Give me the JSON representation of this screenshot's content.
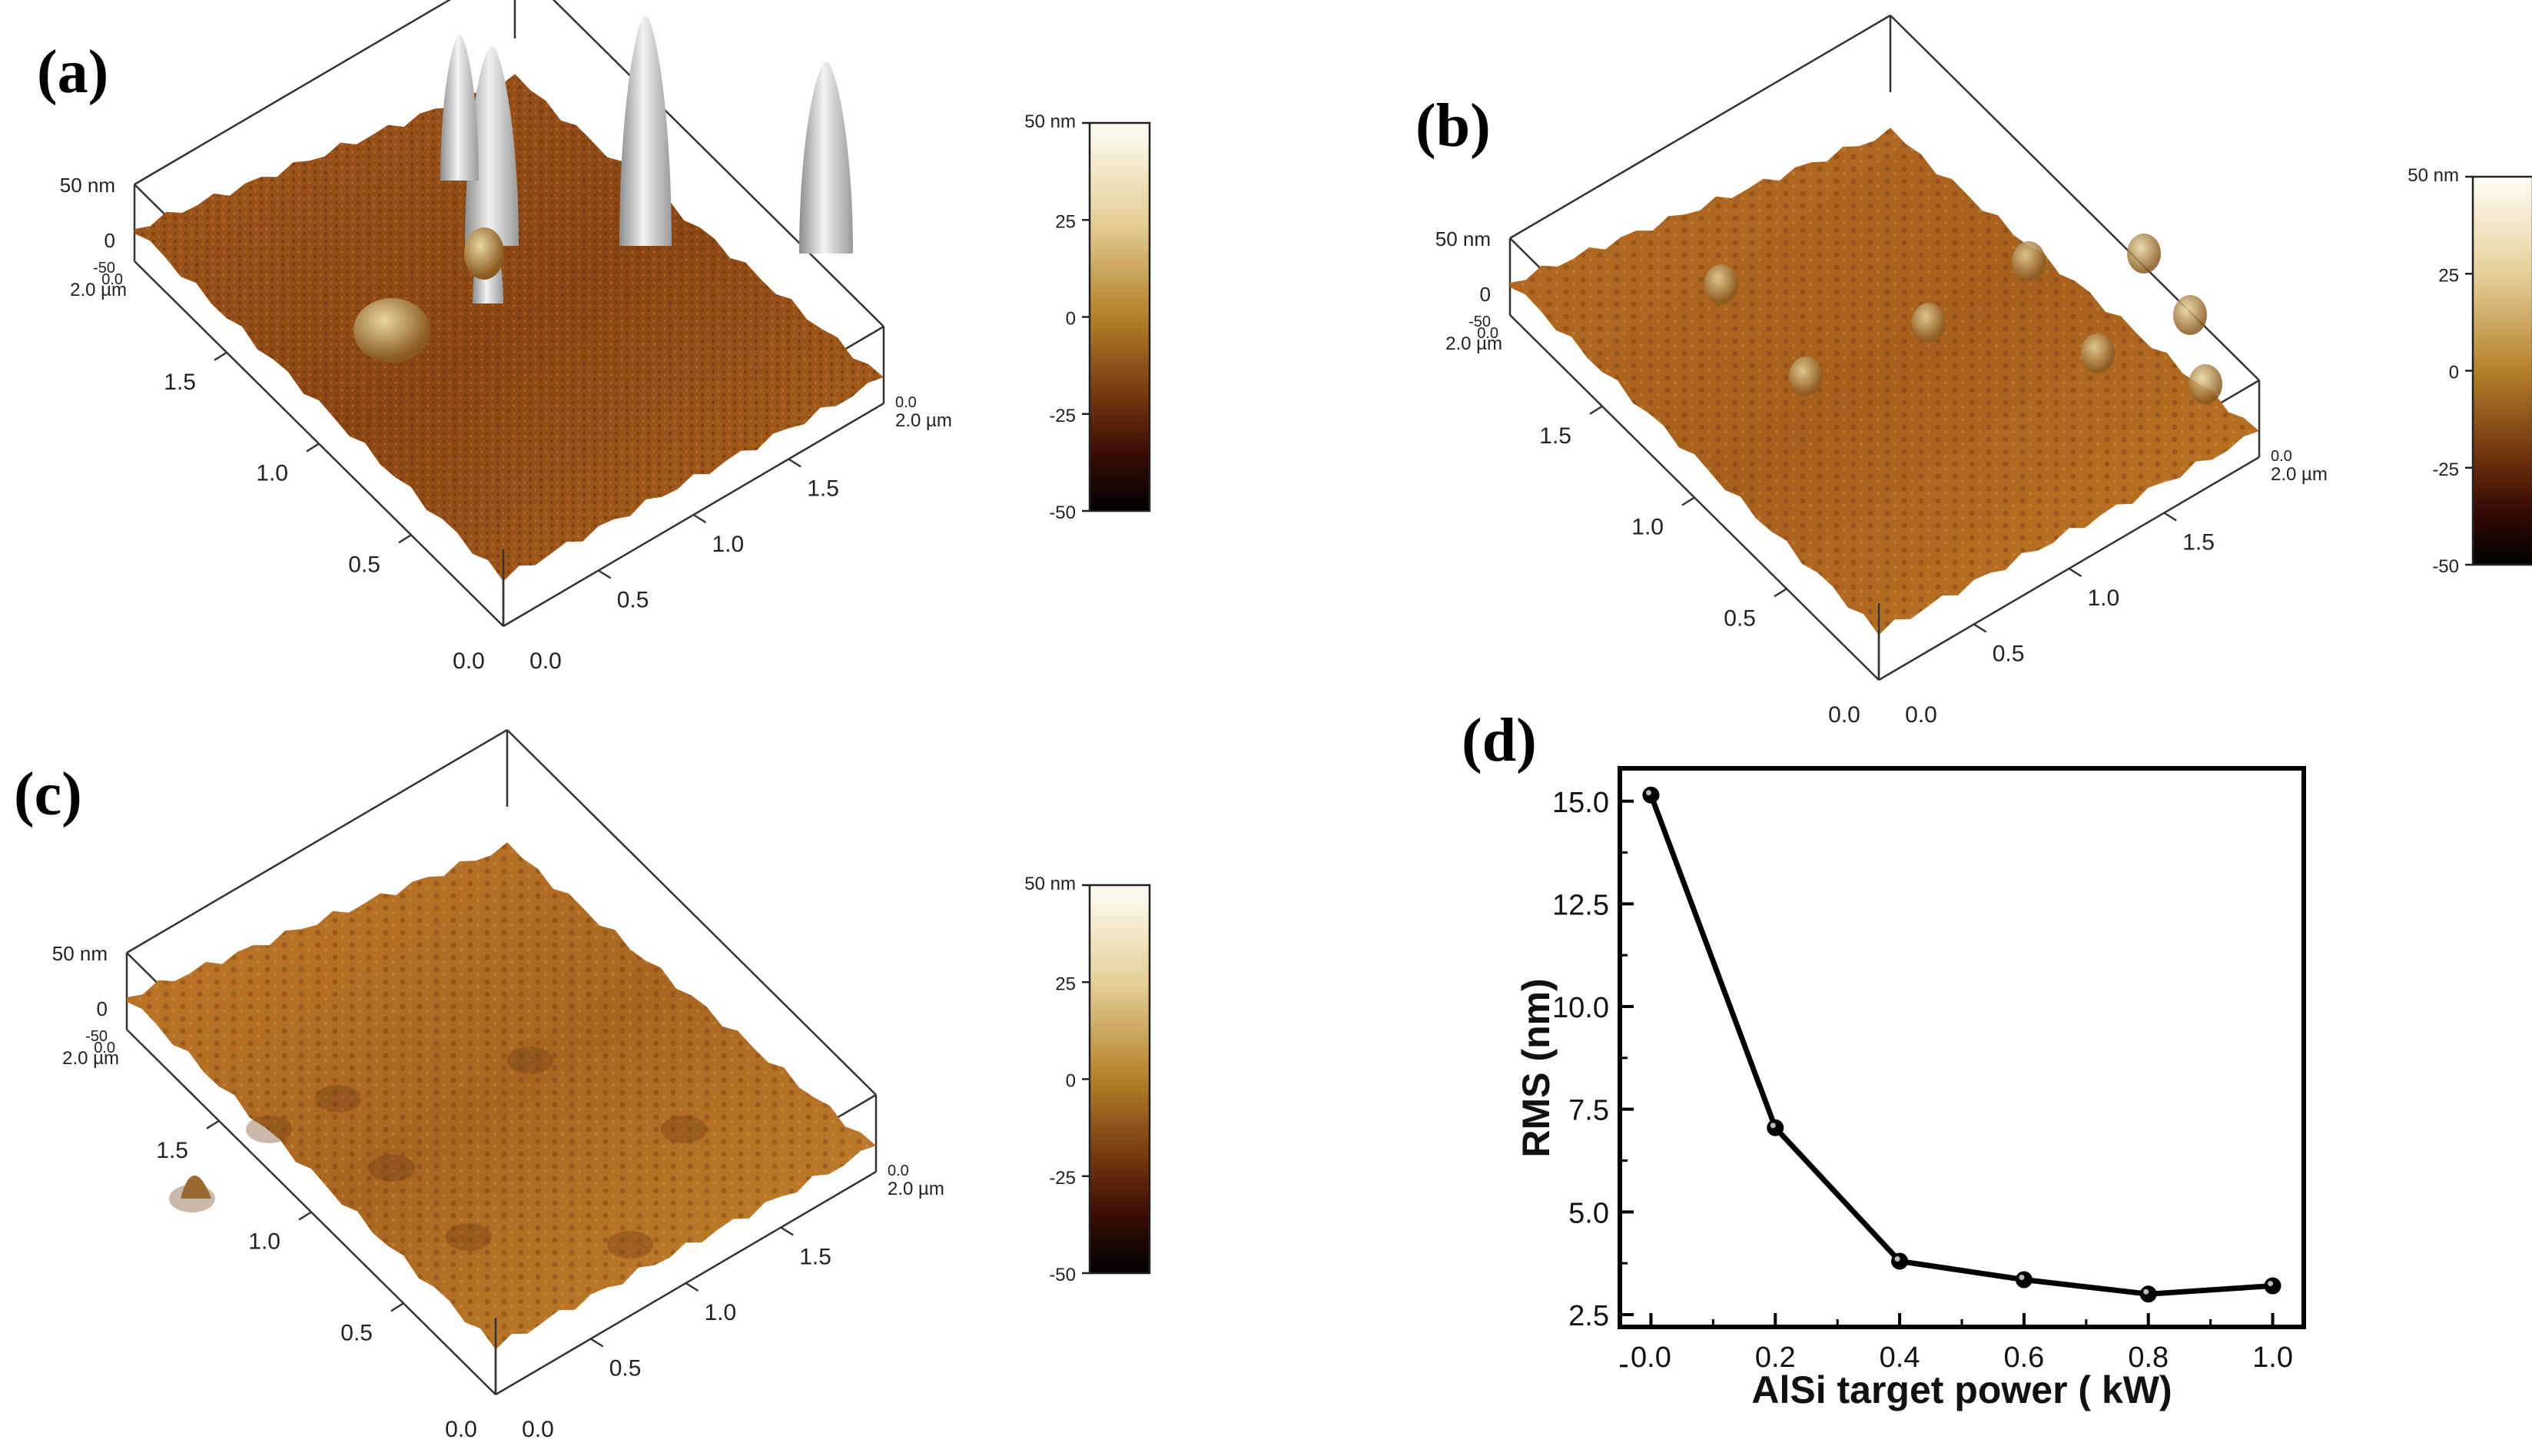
{
  "labels": {
    "a": "(a)",
    "b": "(b)",
    "c": "(c)",
    "d": "(d)"
  },
  "afm_panels": [
    {
      "id": "a",
      "z_label": "50 nm",
      "z_zero": "0",
      "z_neg": "-50",
      "corner_y": "0.0",
      "corner_x": "0.0",
      "y_end": "2.0 µm",
      "x_end": "2.0 µm",
      "axis_ticks": [
        "0.0",
        "0.5",
        "1.0",
        "1.5"
      ],
      "back_zero_left": "0.0",
      "back_zero_right": "0.0",
      "peaks": "tall"
    },
    {
      "id": "b",
      "z_label": "50 nm",
      "z_zero": "0",
      "z_neg": "-50",
      "corner_y": "0.0",
      "corner_x": "0.0",
      "y_end": "2.0 µm",
      "x_end": "2.0 µm",
      "axis_ticks": [
        "0.0",
        "0.5",
        "1.0",
        "1.5"
      ],
      "back_zero_left": "0.0",
      "back_zero_right": "0.0",
      "peaks": "small"
    },
    {
      "id": "c",
      "z_label": "50 nm",
      "z_zero": "0",
      "z_neg": "-50",
      "corner_y": "0.0",
      "corner_x": "0.0",
      "y_end": "2.0 µm",
      "x_end": "2.0 µm",
      "axis_ticks": [
        "0.0",
        "0.5",
        "1.0",
        "1.5"
      ],
      "back_zero_left": "0.0",
      "back_zero_right": "0.0",
      "peaks": "smooth"
    }
  ],
  "colorbar": {
    "ticks": [
      "50 nm",
      "25",
      "0",
      "-25",
      "-50"
    ],
    "gradient": [
      "#fefcf4",
      "#e9d6a0",
      "#b98a2c",
      "#7a3c10",
      "#3a0c04",
      "#000000"
    ]
  },
  "chart_data": {
    "type": "line",
    "x": [
      0.0,
      0.2,
      0.4,
      0.6,
      0.8,
      1.0
    ],
    "y": [
      15.15,
      7.05,
      3.8,
      3.35,
      3.0,
      3.2
    ],
    "xlabel": "AlSi target power ( kW)",
    "ylabel": "RMS (nm)",
    "xlim": [
      -0.05,
      1.05
    ],
    "ylim": [
      2.2,
      15.8
    ],
    "xticks": [
      "0.0",
      "0.2",
      "0.4",
      "0.6",
      "0.8",
      "1.0"
    ],
    "yticks": [
      "2.5",
      "5.0",
      "7.5",
      "10.0",
      "12.5",
      "15.0"
    ],
    "marker": "filled-circle",
    "line_color": "#000000"
  }
}
